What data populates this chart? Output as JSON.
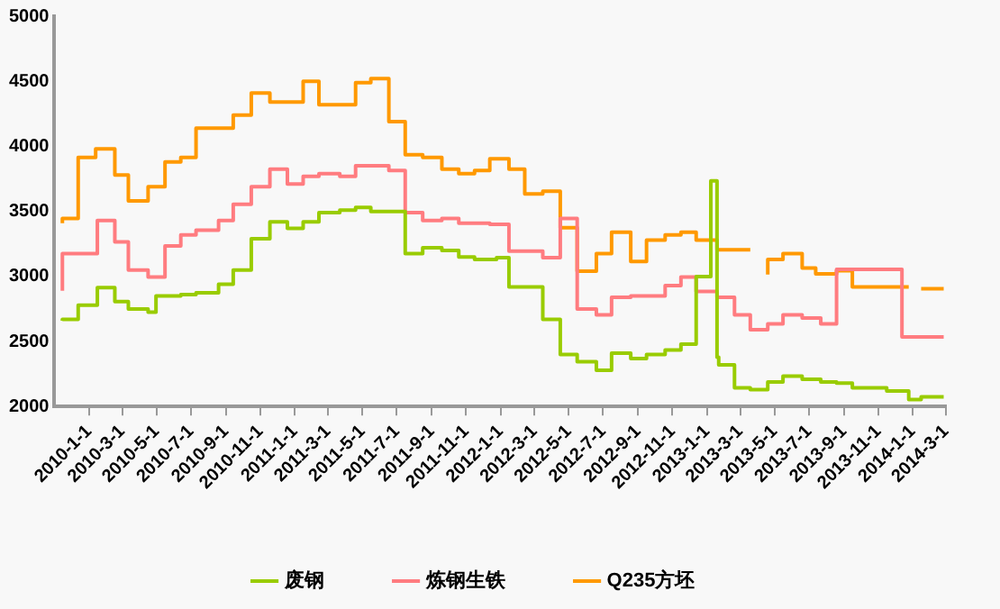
{
  "chart_data": {
    "type": "step",
    "legend": "bottom",
    "grid": false,
    "marker": "none",
    "xlim": [
      "2009-11-01",
      "2014-03-01"
    ],
    "xticks": [
      {
        "value": "2010-01-01",
        "label": "2010-1-1"
      },
      {
        "value": "2010-03-01",
        "label": "2010-3-1"
      },
      {
        "value": "2010-05-01",
        "label": "2010-5-1"
      },
      {
        "value": "2010-07-01",
        "label": "2010-7-1"
      },
      {
        "value": "2010-09-01",
        "label": "2010-9-1"
      },
      {
        "value": "2010-11-01",
        "label": "2010-11-1"
      },
      {
        "value": "2011-01-01",
        "label": "2011-1-1"
      },
      {
        "value": "2011-03-01",
        "label": "2011-3-1"
      },
      {
        "value": "2011-05-01",
        "label": "2011-5-1"
      },
      {
        "value": "2011-07-01",
        "label": "2011-7-1"
      },
      {
        "value": "2011-09-01",
        "label": "2011-9-1"
      },
      {
        "value": "2011-11-01",
        "label": "2011-11-1"
      },
      {
        "value": "2012-01-01",
        "label": "2012-1-1"
      },
      {
        "value": "2012-03-01",
        "label": "2012-3-1"
      },
      {
        "value": "2012-05-01",
        "label": "2012-5-1"
      },
      {
        "value": "2012-07-01",
        "label": "2012-7-1"
      },
      {
        "value": "2012-09-01",
        "label": "2012-9-1"
      },
      {
        "value": "2012-11-01",
        "label": "2012-11-1"
      },
      {
        "value": "2013-01-01",
        "label": "2013-1-1"
      },
      {
        "value": "2013-03-01",
        "label": "2013-3-1"
      },
      {
        "value": "2013-05-01",
        "label": "2013-5-1"
      },
      {
        "value": "2013-07-01",
        "label": "2013-7-1"
      },
      {
        "value": "2013-09-01",
        "label": "2013-9-1"
      },
      {
        "value": "2013-11-01",
        "label": "2013-11-1"
      },
      {
        "value": "2014-01-01",
        "label": "2014-1-1"
      },
      {
        "value": "2014-03-01",
        "label": "2014-3-1"
      }
    ],
    "ylim": [
      2000,
      5000
    ],
    "yticks": [
      2000,
      2500,
      3000,
      3500,
      4000,
      4500,
      5000
    ],
    "series": [
      {
        "name": "废钢",
        "color": "#99cc00",
        "x": [
          "2009-11-15",
          "2009-12-13",
          "2010-01-16",
          "2010-02-16",
          "2010-03-12",
          "2010-04-16",
          "2010-04-30",
          "2010-06-13",
          "2010-07-10",
          "2010-08-19",
          "2010-09-14",
          "2010-10-16",
          "2010-11-18",
          "2010-12-19",
          "2011-01-16",
          "2011-02-13",
          "2011-03-22",
          "2011-04-19",
          "2011-05-16",
          "2011-07-16",
          "2011-08-16",
          "2011-09-19",
          "2011-10-19",
          "2011-11-16",
          "2011-12-25",
          "2012-01-16",
          "2012-03-16",
          "2012-04-16",
          "2012-05-16",
          "2012-06-19",
          "2012-07-16",
          "2012-08-19",
          "2012-09-16",
          "2012-10-19",
          "2012-11-16",
          "2012-12-13",
          "2013-01-08",
          "2013-01-19",
          "2013-01-22",
          "2013-02-19",
          "2013-03-19",
          "2013-04-19",
          "2013-05-16",
          "2013-06-19",
          "2013-07-22",
          "2013-08-19",
          "2013-09-16",
          "2013-11-16",
          "2013-12-25",
          "2014-01-16",
          "2014-02-19",
          "2014-02-25"
        ],
        "values": [
          2660,
          2670,
          2780,
          2915,
          2807,
          2750,
          2725,
          2850,
          2860,
          2875,
          2940,
          3050,
          3290,
          3420,
          3370,
          3420,
          3490,
          3510,
          3530,
          3500,
          3175,
          3220,
          3200,
          3150,
          3130,
          3145,
          2920,
          2670,
          2400,
          2345,
          2280,
          2410,
          2370,
          2400,
          2435,
          2480,
          3000,
          3735,
          2380,
          2320,
          2145,
          2130,
          2190,
          2235,
          2210,
          2190,
          2180,
          2145,
          2120,
          2055,
          2075,
          2075
        ]
      },
      {
        "name": "炼钢生铁",
        "color": "#ff7c80",
        "x": [
          "2009-11-15",
          "2010-01-16",
          "2010-02-16",
          "2010-03-12",
          "2010-04-16",
          "2010-05-16",
          "2010-06-13",
          "2010-07-10",
          "2010-08-19",
          "2010-09-14",
          "2010-10-16",
          "2010-11-18",
          "2010-12-19",
          "2011-01-16",
          "2011-02-13",
          "2011-03-22",
          "2011-04-19",
          "2011-06-17",
          "2011-07-16",
          "2011-08-16",
          "2011-09-19",
          "2011-10-19",
          "2011-12-13",
          "2012-01-16",
          "2012-03-16",
          "2012-04-16",
          "2012-05-16",
          "2012-06-19",
          "2012-07-16",
          "2012-08-19",
          "2012-10-19",
          "2012-11-16",
          "2012-12-13",
          "2013-01-19",
          "2013-02-19",
          "2013-03-19",
          "2013-04-19",
          "2013-05-16",
          "2013-06-19",
          "2013-07-22",
          "2013-08-19",
          "2013-10-13",
          "2013-12-13",
          "2014-01-16",
          "2014-02-25"
        ],
        "values": [
          2890,
          3175,
          3430,
          3265,
          3050,
          2995,
          3235,
          3320,
          3355,
          3430,
          3555,
          3690,
          3825,
          3710,
          3770,
          3790,
          3770,
          3850,
          3815,
          3490,
          3430,
          3445,
          3410,
          3400,
          3195,
          3145,
          3445,
          2750,
          2705,
          2840,
          2850,
          2930,
          2995,
          2885,
          2840,
          2705,
          2590,
          2635,
          2705,
          2680,
          2635,
          3055,
          3055,
          2535,
          2535
        ]
      },
      {
        "name": "Q235方坯",
        "color": "#ff9900",
        "x": [
          "2009-11-15",
          "2009-12-13",
          "2010-01-13",
          "2010-02-16",
          "2010-03-12",
          "2010-04-16",
          "2010-05-16",
          "2010-06-13",
          "2010-07-10",
          "2010-09-14",
          "2010-10-16",
          "2010-11-18",
          "2011-01-16",
          "2011-02-13",
          "2011-04-19",
          "2011-05-16",
          "2011-06-17",
          "2011-07-16",
          "2011-08-16",
          "2011-09-19",
          "2011-10-19",
          "2011-11-16",
          "2011-12-13",
          "2012-01-16",
          "2012-02-13",
          "2012-03-16",
          "2012-04-16",
          "2012-05-16",
          "2012-06-19",
          "2012-07-16",
          "2012-08-19",
          "2012-09-16",
          "2012-10-19",
          "2012-11-16",
          "2012-12-13",
          "2013-01-19",
          "2013-02-19",
          "2013-03-19",
          "2013-03-20",
          "2013-04-19",
          "2013-05-16",
          "2013-06-19",
          "2013-07-13",
          "2013-08-19",
          "2013-09-16",
          "2013-11-16",
          "2013-12-25",
          "2013-12-28",
          "2014-01-16",
          "2014-02-25"
        ],
        "values": [
          3410,
          3445,
          3915,
          3980,
          3780,
          3580,
          3690,
          3880,
          3915,
          4140,
          4240,
          4410,
          4340,
          4500,
          4320,
          4490,
          4520,
          4190,
          3935,
          3915,
          3825,
          3790,
          3815,
          3905,
          3825,
          3635,
          3655,
          3375,
          3040,
          3175,
          3340,
          3115,
          3280,
          3320,
          3340,
          3280,
          3205,
          3205,
          null,
          3015,
          3130,
          3175,
          3065,
          3020,
          3045,
          2920,
          2920,
          null,
          2905,
          2905
        ]
      }
    ]
  }
}
